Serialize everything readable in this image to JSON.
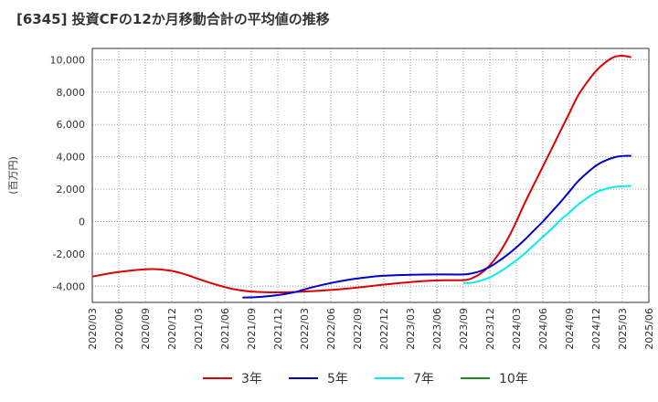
{
  "title": "[6345]  投資CFの12か月移動合計の平均値の推移",
  "chart_data": {
    "type": "line",
    "title": "[6345]  投資CFの12か月移動合計の平均値の推移",
    "ylabel": "(百万円)",
    "xlabel": "",
    "ylim": [
      -5000,
      10700
    ],
    "yticks": [
      -4000,
      -2000,
      0,
      2000,
      4000,
      6000,
      8000,
      10000
    ],
    "ytick_labels": [
      "-4,000",
      "-2,000",
      "0",
      "2,000",
      "4,000",
      "6,000",
      "8,000",
      "10,000"
    ],
    "xticks": [
      "2020/03",
      "2020/06",
      "2020/09",
      "2020/12",
      "2021/03",
      "2021/06",
      "2021/09",
      "2021/12",
      "2022/03",
      "2022/06",
      "2022/09",
      "2022/12",
      "2023/03",
      "2023/06",
      "2023/09",
      "2023/12",
      "2024/03",
      "2024/06",
      "2024/09",
      "2024/12",
      "2025/03",
      "2025/06"
    ],
    "grid": true,
    "legend_position": "bottom",
    "series": [
      {
        "name": "3年",
        "color": "#dd0000",
        "points": [
          [
            "2020/03",
            -3400
          ],
          [
            "2020/05",
            -3200
          ],
          [
            "2020/07",
            -3050
          ],
          [
            "2020/09",
            -2950
          ],
          [
            "2020/10",
            -2940
          ],
          [
            "2020/11",
            -2980
          ],
          [
            "2020/12",
            -3050
          ],
          [
            "2021/01",
            -3180
          ],
          [
            "2021/02",
            -3350
          ],
          [
            "2021/03",
            -3550
          ],
          [
            "2021/05",
            -3900
          ],
          [
            "2021/07",
            -4180
          ],
          [
            "2021/09",
            -4330
          ],
          [
            "2021/12",
            -4380
          ],
          [
            "2022/03",
            -4330
          ],
          [
            "2022/06",
            -4230
          ],
          [
            "2022/09",
            -4080
          ],
          [
            "2022/12",
            -3900
          ],
          [
            "2023/03",
            -3740
          ],
          [
            "2023/06",
            -3640
          ],
          [
            "2023/09",
            -3620
          ],
          [
            "2023/10",
            -3500
          ],
          [
            "2023/11",
            -3200
          ],
          [
            "2023/12",
            -2700
          ],
          [
            "2024/01",
            -2000
          ],
          [
            "2024/02",
            -1100
          ],
          [
            "2024/03",
            0
          ],
          [
            "2024/04",
            1200
          ],
          [
            "2024/05",
            2300
          ],
          [
            "2024/06",
            3400
          ],
          [
            "2024/07",
            4500
          ],
          [
            "2024/08",
            5600
          ],
          [
            "2024/09",
            6700
          ],
          [
            "2024/10",
            7800
          ],
          [
            "2024/11",
            8600
          ],
          [
            "2024/12",
            9300
          ],
          [
            "2025/01",
            9800
          ],
          [
            "2025/02",
            10150
          ],
          [
            "2025/03",
            10250
          ],
          [
            "2025/04",
            10150
          ]
        ]
      },
      {
        "name": "5年",
        "color": "#0000cc",
        "points": [
          [
            "2021/08",
            -4700
          ],
          [
            "2021/10",
            -4660
          ],
          [
            "2021/12",
            -4550
          ],
          [
            "2022/02",
            -4350
          ],
          [
            "2022/04",
            -4050
          ],
          [
            "2022/06",
            -3800
          ],
          [
            "2022/08",
            -3600
          ],
          [
            "2022/10",
            -3450
          ],
          [
            "2022/12",
            -3350
          ],
          [
            "2023/03",
            -3290
          ],
          [
            "2023/06",
            -3270
          ],
          [
            "2023/09",
            -3270
          ],
          [
            "2023/10",
            -3200
          ],
          [
            "2023/11",
            -3050
          ],
          [
            "2023/12",
            -2800
          ],
          [
            "2024/01",
            -2450
          ],
          [
            "2024/02",
            -2050
          ],
          [
            "2024/03",
            -1600
          ],
          [
            "2024/04",
            -1100
          ],
          [
            "2024/05",
            -550
          ],
          [
            "2024/06",
            0
          ],
          [
            "2024/07",
            600
          ],
          [
            "2024/08",
            1200
          ],
          [
            "2024/09",
            1850
          ],
          [
            "2024/10",
            2500
          ],
          [
            "2024/11",
            3000
          ],
          [
            "2024/12",
            3450
          ],
          [
            "2025/01",
            3750
          ],
          [
            "2025/02",
            3950
          ],
          [
            "2025/03",
            4050
          ],
          [
            "2025/04",
            4060
          ]
        ]
      },
      {
        "name": "7年",
        "color": "#00eeee",
        "points": [
          [
            "2023/09",
            -3800
          ],
          [
            "2023/10",
            -3780
          ],
          [
            "2023/11",
            -3650
          ],
          [
            "2023/12",
            -3450
          ],
          [
            "2024/01",
            -3150
          ],
          [
            "2024/02",
            -2800
          ],
          [
            "2024/03",
            -2400
          ],
          [
            "2024/04",
            -1950
          ],
          [
            "2024/05",
            -1450
          ],
          [
            "2024/06",
            -950
          ],
          [
            "2024/07",
            -450
          ],
          [
            "2024/08",
            100
          ],
          [
            "2024/09",
            550
          ],
          [
            "2024/10",
            1050
          ],
          [
            "2024/11",
            1450
          ],
          [
            "2024/12",
            1800
          ],
          [
            "2025/01",
            2000
          ],
          [
            "2025/02",
            2130
          ],
          [
            "2025/03",
            2180
          ],
          [
            "2025/04",
            2200
          ]
        ]
      },
      {
        "name": "10年",
        "color": "#228822",
        "points": []
      }
    ]
  }
}
